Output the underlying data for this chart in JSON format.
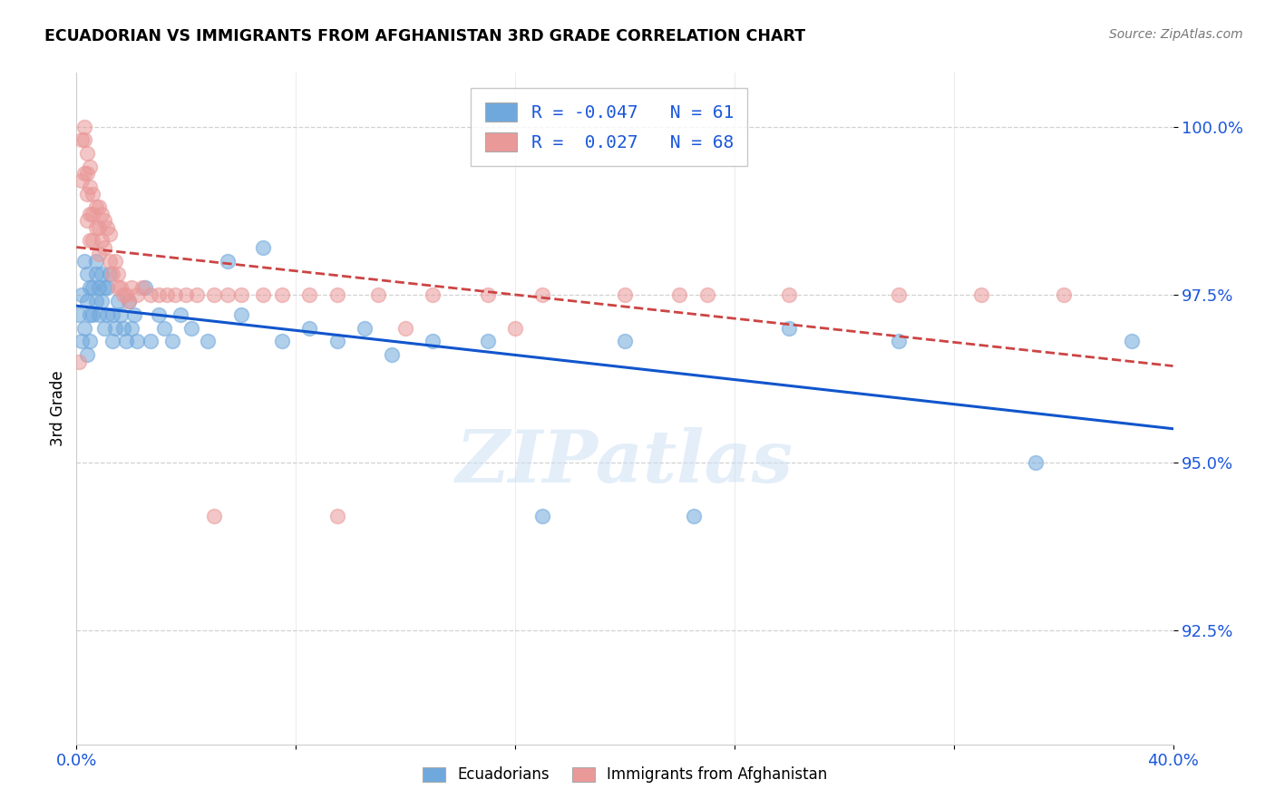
{
  "title": "ECUADORIAN VS IMMIGRANTS FROM AFGHANISTAN 3RD GRADE CORRELATION CHART",
  "source": "Source: ZipAtlas.com",
  "ylabel": "3rd Grade",
  "xlim": [
    0.0,
    0.4
  ],
  "ylim": [
    0.908,
    1.008
  ],
  "yticks": [
    0.925,
    0.95,
    0.975,
    1.0
  ],
  "ytick_labels": [
    "92.5%",
    "95.0%",
    "97.5%",
    "100.0%"
  ],
  "xticks": [
    0.0,
    0.08,
    0.16,
    0.24,
    0.32,
    0.4
  ],
  "xtick_labels": [
    "0.0%",
    "",
    "",
    "",
    "",
    "40.0%"
  ],
  "blue_R": -0.047,
  "blue_N": 61,
  "pink_R": 0.027,
  "pink_N": 68,
  "blue_color": "#6fa8dc",
  "pink_color": "#ea9999",
  "trend_blue_color": "#1155cc",
  "trend_pink_color": "#cc4444",
  "watermark": "ZIPatlas",
  "blue_scatter_x": [
    0.001,
    0.002,
    0.002,
    0.003,
    0.003,
    0.004,
    0.004,
    0.004,
    0.005,
    0.005,
    0.005,
    0.006,
    0.006,
    0.007,
    0.007,
    0.007,
    0.008,
    0.008,
    0.009,
    0.009,
    0.01,
    0.01,
    0.011,
    0.011,
    0.012,
    0.013,
    0.013,
    0.014,
    0.015,
    0.016,
    0.017,
    0.018,
    0.019,
    0.02,
    0.021,
    0.022,
    0.025,
    0.027,
    0.03,
    0.032,
    0.035,
    0.038,
    0.042,
    0.048,
    0.055,
    0.06,
    0.068,
    0.075,
    0.085,
    0.095,
    0.105,
    0.115,
    0.13,
    0.15,
    0.17,
    0.2,
    0.225,
    0.26,
    0.3,
    0.35,
    0.385
  ],
  "blue_scatter_y": [
    0.972,
    0.975,
    0.968,
    0.98,
    0.97,
    0.978,
    0.974,
    0.966,
    0.976,
    0.972,
    0.968,
    0.976,
    0.972,
    0.98,
    0.978,
    0.974,
    0.976,
    0.972,
    0.978,
    0.974,
    0.976,
    0.97,
    0.976,
    0.972,
    0.978,
    0.972,
    0.968,
    0.97,
    0.974,
    0.972,
    0.97,
    0.968,
    0.974,
    0.97,
    0.972,
    0.968,
    0.976,
    0.968,
    0.972,
    0.97,
    0.968,
    0.972,
    0.97,
    0.968,
    0.98,
    0.972,
    0.982,
    0.968,
    0.97,
    0.968,
    0.97,
    0.966,
    0.968,
    0.968,
    0.942,
    0.968,
    0.942,
    0.97,
    0.968,
    0.95,
    0.968
  ],
  "pink_scatter_x": [
    0.001,
    0.002,
    0.002,
    0.003,
    0.003,
    0.003,
    0.004,
    0.004,
    0.004,
    0.004,
    0.005,
    0.005,
    0.005,
    0.005,
    0.006,
    0.006,
    0.006,
    0.007,
    0.007,
    0.008,
    0.008,
    0.008,
    0.009,
    0.009,
    0.01,
    0.01,
    0.011,
    0.012,
    0.012,
    0.013,
    0.014,
    0.015,
    0.015,
    0.016,
    0.017,
    0.018,
    0.019,
    0.02,
    0.022,
    0.024,
    0.027,
    0.03,
    0.033,
    0.036,
    0.04,
    0.044,
    0.05,
    0.055,
    0.06,
    0.068,
    0.075,
    0.085,
    0.095,
    0.11,
    0.13,
    0.15,
    0.17,
    0.2,
    0.23,
    0.26,
    0.3,
    0.33,
    0.36,
    0.05,
    0.095,
    0.12,
    0.16,
    0.22
  ],
  "pink_scatter_y": [
    0.965,
    0.998,
    0.992,
    1.0,
    0.998,
    0.993,
    0.996,
    0.993,
    0.99,
    0.986,
    0.994,
    0.991,
    0.987,
    0.983,
    0.99,
    0.987,
    0.983,
    0.988,
    0.985,
    0.988,
    0.985,
    0.981,
    0.987,
    0.983,
    0.986,
    0.982,
    0.985,
    0.984,
    0.98,
    0.978,
    0.98,
    0.978,
    0.976,
    0.976,
    0.975,
    0.975,
    0.974,
    0.976,
    0.975,
    0.976,
    0.975,
    0.975,
    0.975,
    0.975,
    0.975,
    0.975,
    0.975,
    0.975,
    0.975,
    0.975,
    0.975,
    0.975,
    0.975,
    0.975,
    0.975,
    0.975,
    0.975,
    0.975,
    0.975,
    0.975,
    0.975,
    0.975,
    0.975,
    0.942,
    0.942,
    0.97,
    0.97,
    0.975
  ]
}
